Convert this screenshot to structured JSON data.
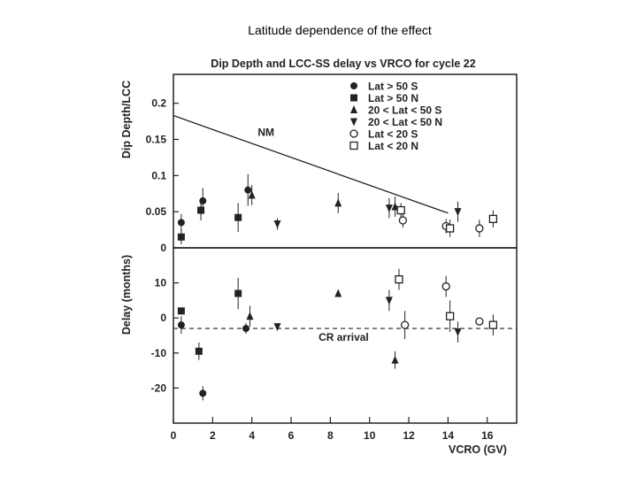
{
  "slide": {
    "title": "Latitude dependence of the effect"
  },
  "chart_data": [
    {
      "panel": "top",
      "type": "scatter",
      "title": "Dip Depth and LCC-SS delay vs VRCO for cycle 22",
      "ylabel": "Dip Depth/LCC",
      "xlabel": "",
      "xlim": [
        0,
        17.5
      ],
      "ylim": [
        0,
        0.24
      ],
      "yticks": [
        "0",
        "0.05",
        "0.1",
        "0.15",
        "0.2"
      ],
      "legend_position": "top-right",
      "series": [
        {
          "name": "Lat > 50 S",
          "marker": "filled-circle",
          "points": [
            {
              "x": 0.4,
              "y": 0.035,
              "err": 0.012
            },
            {
              "x": 1.5,
              "y": 0.065,
              "err": 0.018
            },
            {
              "x": 3.8,
              "y": 0.08,
              "err": 0.022
            }
          ]
        },
        {
          "name": "Lat > 50 N",
          "marker": "filled-square",
          "points": [
            {
              "x": 0.4,
              "y": 0.015,
              "err": 0.01
            },
            {
              "x": 1.4,
              "y": 0.052,
              "err": 0.014
            },
            {
              "x": 3.3,
              "y": 0.042,
              "err": 0.02
            }
          ]
        },
        {
          "name": "20 < Lat < 50 S",
          "marker": "filled-triangle-up",
          "points": [
            {
              "x": 4.0,
              "y": 0.073,
              "err": 0.014
            },
            {
              "x": 8.4,
              "y": 0.062,
              "err": 0.014
            },
            {
              "x": 11.3,
              "y": 0.057,
              "err": 0.014
            }
          ]
        },
        {
          "name": "20 < Lat < 50 N",
          "marker": "filled-triangle-down",
          "points": [
            {
              "x": 5.3,
              "y": 0.033,
              "err": 0.008
            },
            {
              "x": 11.0,
              "y": 0.055,
              "err": 0.014
            },
            {
              "x": 14.5,
              "y": 0.05,
              "err": 0.014
            }
          ]
        },
        {
          "name": "Lat < 20 S",
          "marker": "open-circle",
          "points": [
            {
              "x": 11.7,
              "y": 0.038,
              "err": 0.01
            },
            {
              "x": 13.9,
              "y": 0.03,
              "err": 0.01
            },
            {
              "x": 15.6,
              "y": 0.027,
              "err": 0.012
            }
          ]
        },
        {
          "name": "Lat < 20 N",
          "marker": "open-square",
          "points": [
            {
              "x": 11.6,
              "y": 0.052,
              "err": 0.01
            },
            {
              "x": 14.1,
              "y": 0.027,
              "err": 0.012
            },
            {
              "x": 16.3,
              "y": 0.04,
              "err": 0.012
            }
          ]
        }
      ],
      "reference_lines": [
        {
          "label": "NM",
          "style": "solid",
          "from": [
            0,
            0.183
          ],
          "to": [
            14.0,
            0.048
          ]
        }
      ]
    },
    {
      "panel": "bottom",
      "type": "scatter",
      "title": "",
      "ylabel": "Delay (months)",
      "xlabel": "VCRO (GV)",
      "xlim": [
        0,
        17.5
      ],
      "ylim": [
        -30,
        20
      ],
      "yticks": [
        "10",
        "0",
        "-10",
        "-20"
      ],
      "xticks": [
        "0",
        "2",
        "4",
        "6",
        "8",
        "10",
        "12",
        "14",
        "16"
      ],
      "series": [
        {
          "name": "Lat > 50 S",
          "marker": "filled-circle",
          "points": [
            {
              "x": 0.4,
              "y": -2,
              "err": 2.5
            },
            {
              "x": 1.5,
              "y": -21.5,
              "err": 2
            },
            {
              "x": 3.7,
              "y": -3,
              "err": 1.5
            }
          ]
        },
        {
          "name": "Lat > 50 N",
          "marker": "filled-square",
          "points": [
            {
              "x": 0.4,
              "y": 2,
              "err": 0
            },
            {
              "x": 1.3,
              "y": -9.5,
              "err": 2.5
            },
            {
              "x": 3.3,
              "y": 7,
              "err": 4.5
            }
          ]
        },
        {
          "name": "20 < Lat < 50 S",
          "marker": "filled-triangle-up",
          "points": [
            {
              "x": 3.9,
              "y": 0.5,
              "err": 3
            },
            {
              "x": 8.4,
              "y": 7,
              "err": 0
            },
            {
              "x": 11.3,
              "y": -12,
              "err": 2.5
            }
          ]
        },
        {
          "name": "20 < Lat < 50 N",
          "marker": "filled-triangle-down",
          "points": [
            {
              "x": 5.3,
              "y": -2.5,
              "err": 0
            },
            {
              "x": 11.0,
              "y": 5,
              "err": 3
            },
            {
              "x": 14.5,
              "y": -4,
              "err": 3
            }
          ]
        },
        {
          "name": "Lat < 20 S",
          "marker": "open-circle",
          "points": [
            {
              "x": 11.8,
              "y": -2,
              "err": 4
            },
            {
              "x": 13.9,
              "y": 9,
              "err": 3
            },
            {
              "x": 15.6,
              "y": -1,
              "err": 0
            }
          ]
        },
        {
          "name": "Lat < 20 N",
          "marker": "open-square",
          "points": [
            {
              "x": 11.5,
              "y": 11,
              "err": 3
            },
            {
              "x": 14.1,
              "y": 0.5,
              "err": 4.5
            },
            {
              "x": 16.3,
              "y": -2,
              "err": 3
            }
          ]
        }
      ],
      "reference_lines": [
        {
          "label": "CR arrival",
          "style": "dashed",
          "y": -3
        }
      ]
    }
  ]
}
